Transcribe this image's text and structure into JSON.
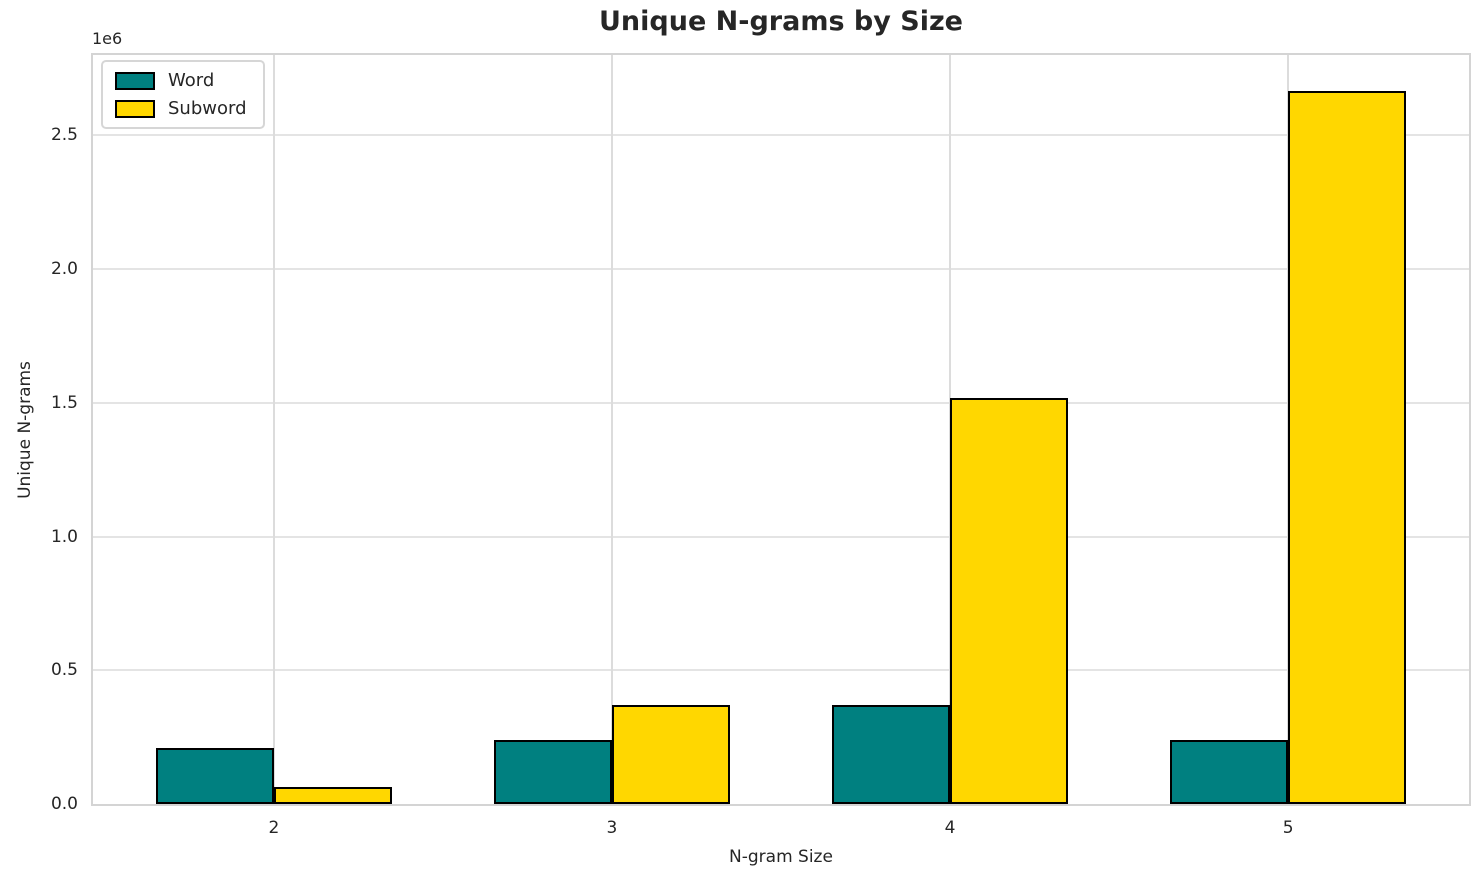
{
  "chart_data": {
    "type": "bar",
    "title": "Unique N-grams by Size",
    "xlabel": "N-gram Size",
    "ylabel": "Unique N-grams",
    "offset_text": "1e6",
    "categories": [
      "2",
      "3",
      "4",
      "5"
    ],
    "category_x": [
      2,
      3,
      4,
      5
    ],
    "series": [
      {
        "name": "Word",
        "color": "#008080",
        "values": [
          210000,
          240000,
          371000,
          238000
        ]
      },
      {
        "name": "Subword",
        "color": "#FFD700",
        "values": [
          62000,
          371000,
          1516000,
          2667000
        ]
      }
    ],
    "bar_width_data_units": 0.35,
    "bar_edge_color": "#000000",
    "xlim": [
      1.465,
      5.535
    ],
    "ylim": [
      0,
      2800000
    ],
    "yticks": {
      "values": [
        0,
        500000,
        1000000,
        1500000,
        2000000,
        2500000
      ],
      "labels": [
        "0.0",
        "0.5",
        "1.0",
        "1.5",
        "2.0",
        "2.5"
      ]
    },
    "grid": true,
    "legend_position": "upper-left"
  }
}
